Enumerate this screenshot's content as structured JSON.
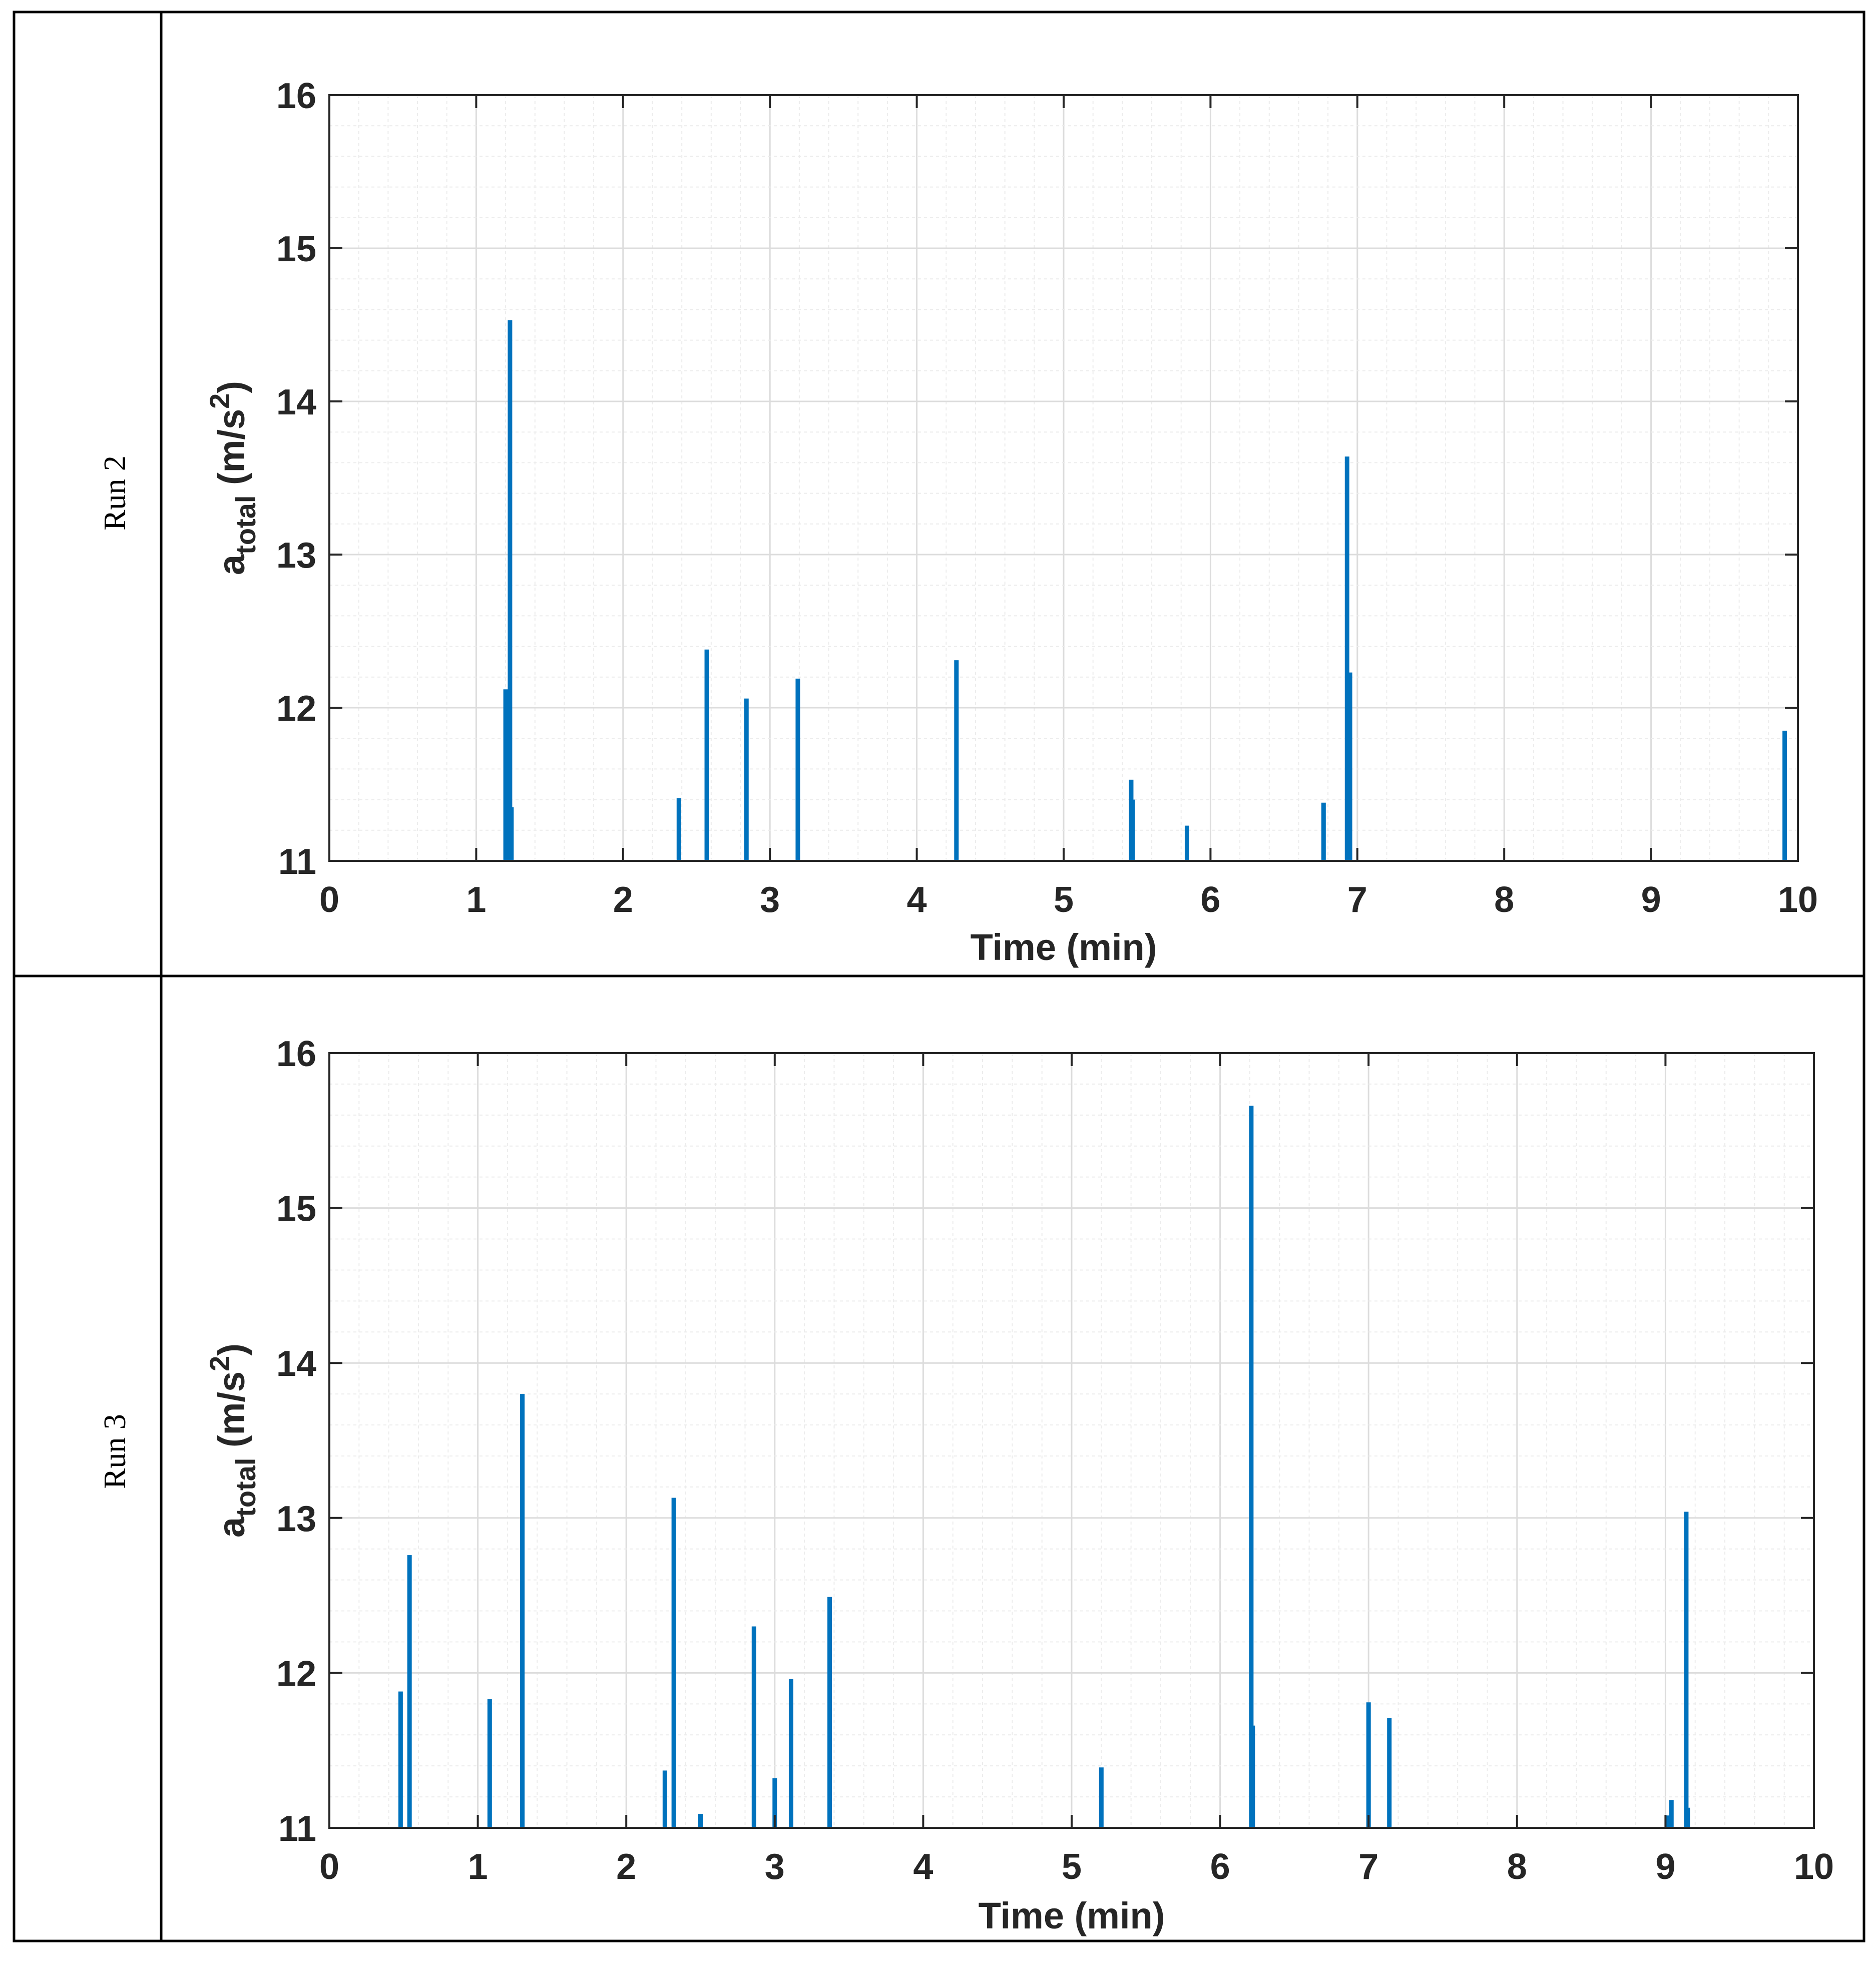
{
  "rows": [
    {
      "label": "Run 2",
      "chart_data": {
        "type": "bar",
        "title": "",
        "xlabel": "Time (min)",
        "ylabel": {
          "base": "a",
          "sub": "total",
          "unit_prefix": " (m/s",
          "unit_sup": "2",
          "unit_suffix": ")"
        },
        "xlim": [
          0,
          10
        ],
        "ylim": [
          11,
          16
        ],
        "xticks": [
          0,
          1,
          2,
          3,
          4,
          5,
          6,
          7,
          8,
          9,
          10
        ],
        "yticks": [
          11,
          12,
          13,
          14,
          15,
          16
        ],
        "grid": true,
        "color": "#0072BD",
        "x": [
          1.2,
          1.23,
          1.24,
          2.38,
          2.57,
          2.84,
          3.19,
          4.27,
          5.46,
          5.47,
          5.84,
          6.77,
          6.93,
          6.95,
          9.91
        ],
        "y": [
          12.12,
          14.53,
          11.35,
          11.41,
          12.38,
          12.06,
          12.19,
          12.31,
          11.53,
          11.4,
          11.23,
          11.38,
          13.64,
          12.23,
          11.85
        ]
      }
    },
    {
      "label": "Run 3",
      "chart_data": {
        "type": "bar",
        "title": "",
        "xlabel": "Time (min)",
        "ylabel": {
          "base": "a",
          "sub": "total",
          "unit_prefix": " (m/s",
          "unit_sup": "2",
          "unit_suffix": ")"
        },
        "xlim": [
          0,
          10
        ],
        "ylim": [
          11,
          16
        ],
        "xticks": [
          0,
          1,
          2,
          3,
          4,
          5,
          6,
          7,
          8,
          9,
          10
        ],
        "yticks": [
          11,
          12,
          13,
          14,
          15,
          16
        ],
        "grid": true,
        "color": "#0072BD",
        "x": [
          0.48,
          0.54,
          1.08,
          1.3,
          2.26,
          2.32,
          2.5,
          2.86,
          3.0,
          3.11,
          3.37,
          5.2,
          6.21,
          6.22,
          7.0,
          7.14,
          9.02,
          9.04,
          9.14,
          9.15
        ],
        "y": [
          11.88,
          12.76,
          11.83,
          13.8,
          11.37,
          13.13,
          11.09,
          12.3,
          11.32,
          11.96,
          12.49,
          11.39,
          15.66,
          11.66,
          11.81,
          11.71,
          11.08,
          11.18,
          13.04,
          11.13
        ]
      }
    }
  ]
}
